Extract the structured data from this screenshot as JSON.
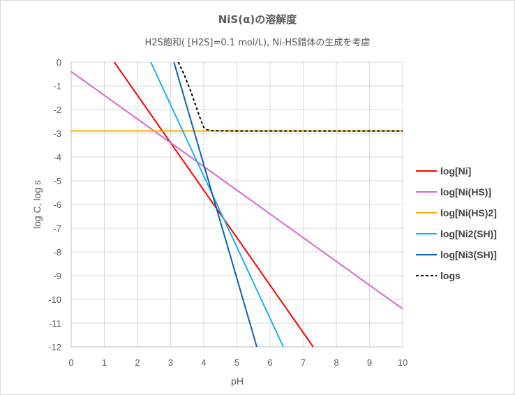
{
  "chart_data": {
    "type": "line",
    "title": "NiS(α)の溶解度",
    "subtitle": "H2S飽和( [H2S]=0.1 mol/L), Ni-HS錯体の生成を考慮",
    "xlabel": "pH",
    "ylabel": "log C, log s",
    "xlim": [
      0,
      10
    ],
    "ylim": [
      -12,
      0
    ],
    "xticks": [
      0,
      1,
      2,
      3,
      4,
      5,
      6,
      7,
      8,
      9,
      10
    ],
    "yticks": [
      0,
      -1,
      -2,
      -3,
      -4,
      -5,
      -6,
      -7,
      -8,
      -9,
      -10,
      -11,
      -12
    ],
    "grid": true,
    "legend_position": "right",
    "series": [
      {
        "name": "log[Ni]",
        "color": "#ff0000",
        "dash": false,
        "x": [
          1.3,
          7.3
        ],
        "y": [
          0,
          -12
        ]
      },
      {
        "name": "log[Ni(HS)]",
        "color": "#d966d2",
        "dash": false,
        "x": [
          0,
          10
        ],
        "y": [
          -0.4,
          -10.4
        ]
      },
      {
        "name": "log[Ni(HS)2]",
        "color": "#ffb000",
        "dash": false,
        "x": [
          0,
          10
        ],
        "y": [
          -2.9,
          -2.9
        ]
      },
      {
        "name": "log[Ni2(SH)]",
        "color": "#1ab2ea",
        "dash": false,
        "x": [
          2.4,
          6.4
        ],
        "y": [
          0,
          -12
        ]
      },
      {
        "name": "log[Ni3(SH)]",
        "color": "#0f5fb0",
        "dash": false,
        "x": [
          3.1,
          5.6
        ],
        "y": [
          0,
          -12
        ]
      },
      {
        "name": "logs",
        "color": "#000000",
        "dash": true,
        "x": [
          3.23,
          3.4,
          3.6,
          3.8,
          3.9,
          4.0,
          4.1,
          4.25,
          5,
          6,
          8,
          10
        ],
        "y": [
          0,
          -0.5,
          -1.2,
          -2.0,
          -2.4,
          -2.75,
          -2.85,
          -2.89,
          -2.9,
          -2.9,
          -2.9,
          -2.9
        ]
      }
    ]
  }
}
